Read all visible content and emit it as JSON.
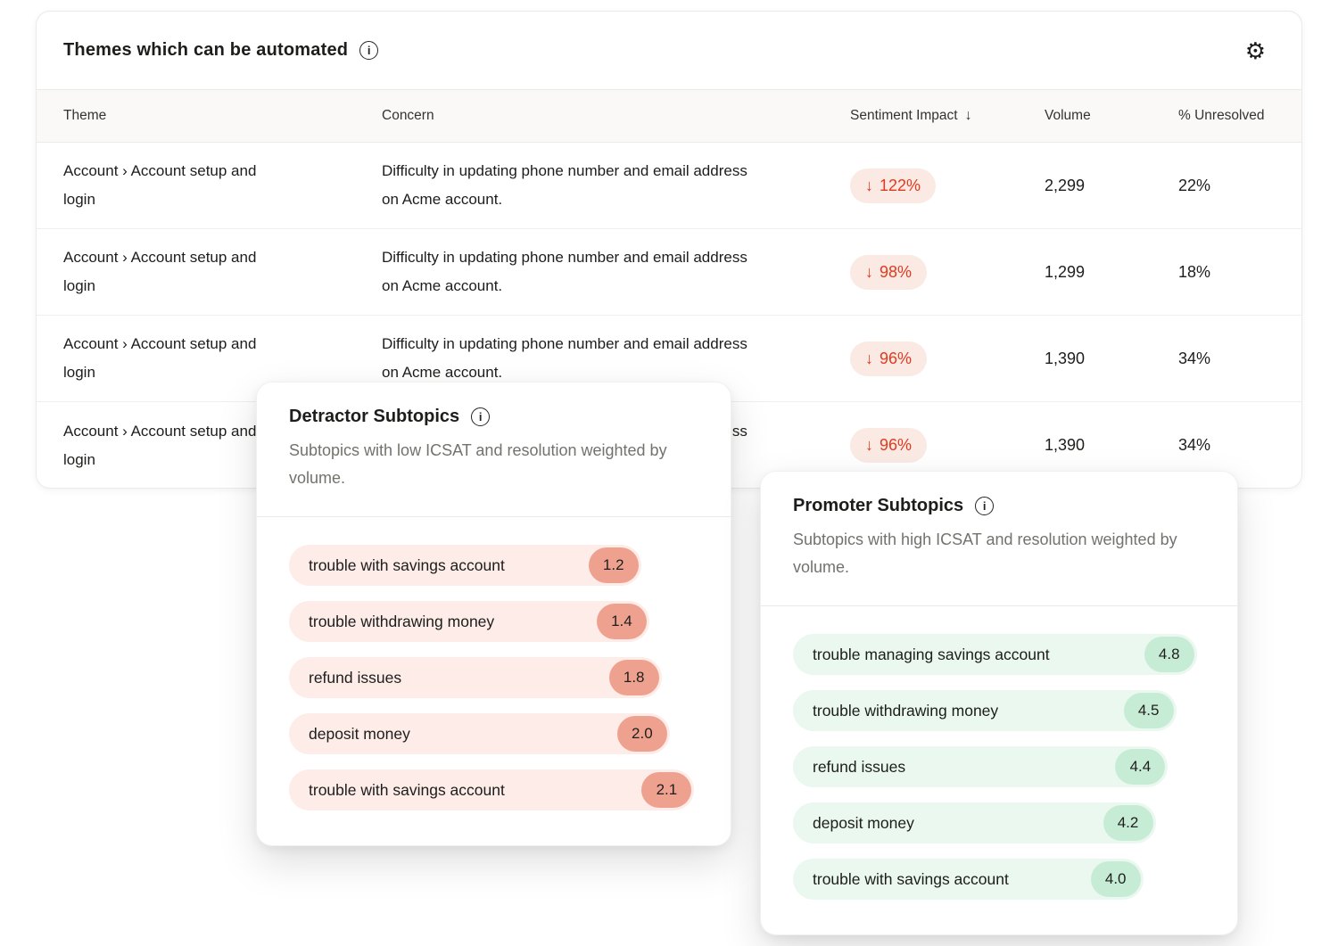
{
  "icons": {
    "info": "i",
    "gear": "⚙",
    "sort_down": "↓",
    "down_arrow": "↓"
  },
  "colors": {
    "negative_text": "#e23a1e",
    "negative_pill_bg": "#fbe9e4",
    "detractor_bar_bg": "#fdece8",
    "detractor_badge_bg": "#efa190",
    "promoter_bar_bg": "#eaf8f0",
    "promoter_badge_bg": "#c7ecd5",
    "header_row_bg": "#faf9f7"
  },
  "themes_card": {
    "title": "Themes which can be automated",
    "columns": {
      "theme": "Theme",
      "concern": "Concern",
      "sentiment": "Sentiment Impact",
      "volume": "Volume",
      "unresolved": "% Unresolved"
    },
    "sorted_by": "Sentiment Impact",
    "sort_direction": "descending",
    "rows": [
      {
        "theme": "Account › Account setup and login",
        "concern": "Difficulty in updating phone number and email address on Acme account.",
        "sentiment_impact": "122%",
        "volume": "2,299",
        "unresolved": "22%"
      },
      {
        "theme": "Account › Account setup and login",
        "concern": "Difficulty in updating phone number and email address on Acme account.",
        "sentiment_impact": "98%",
        "volume": "1,299",
        "unresolved": "18%"
      },
      {
        "theme": "Account › Account setup and login",
        "concern": "Difficulty in updating phone number and email address on Acme account.",
        "sentiment_impact": "96%",
        "volume": "1,390",
        "unresolved": "34%"
      },
      {
        "theme": "Account › Account setup and login",
        "concern": "Difficulty in updating phone number and email address on Acme account.",
        "sentiment_impact": "96%",
        "volume": "1,390",
        "unresolved": "34%"
      }
    ]
  },
  "detractor_popover": {
    "title": "Detractor Subtopics",
    "subtitle": "Subtopics with low ICSAT and resolution weighted by volume.",
    "items": [
      {
        "label": "trouble with savings account",
        "value": "1.2",
        "width_pct": 86
      },
      {
        "label": "trouble withdrawing money",
        "value": "1.4",
        "width_pct": 88
      },
      {
        "label": "refund issues",
        "value": "1.8",
        "width_pct": 91
      },
      {
        "label": "deposit money",
        "value": "2.0",
        "width_pct": 93
      },
      {
        "label": "trouble with savings account",
        "value": "2.1",
        "width_pct": 99
      }
    ]
  },
  "promoter_popover": {
    "title": "Promoter Subtopics",
    "subtitle": "Subtopics with high ICSAT and resolution weighted by volume.",
    "items": [
      {
        "label": "trouble managing savings account",
        "value": "4.8",
        "width_pct": 98
      },
      {
        "label": "trouble withdrawing money",
        "value": "4.5",
        "width_pct": 93
      },
      {
        "label": "refund issues",
        "value": "4.4",
        "width_pct": 91
      },
      {
        "label": "deposit money",
        "value": "4.2",
        "width_pct": 88
      },
      {
        "label": "trouble with savings account",
        "value": "4.0",
        "width_pct": 85
      }
    ]
  }
}
